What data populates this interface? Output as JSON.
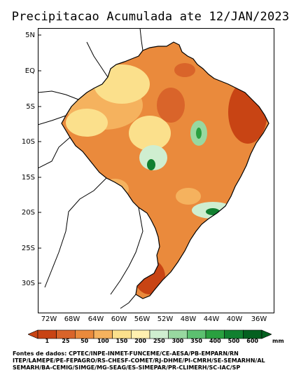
{
  "title": "Precipitacao Acumulada ate 12/JAN/2023",
  "latitude_labels": [
    "5N",
    "EQ",
    "5S",
    "10S",
    "15S",
    "20S",
    "25S",
    "30S"
  ],
  "longitude_labels": [
    "72W",
    "68W",
    "64W",
    "60W",
    "56W",
    "52W",
    "48W",
    "44W",
    "40W",
    "36W"
  ],
  "colorbar": {
    "ticks": [
      "1",
      "25",
      "50",
      "100",
      "150",
      "200",
      "250",
      "300",
      "350",
      "400",
      "500",
      "600"
    ],
    "unit": "mm",
    "colors": [
      "#c84414",
      "#d9642a",
      "#ea8a3c",
      "#f5b25e",
      "#fbe08c",
      "#fff0b0",
      "#cfeed0",
      "#98d8a0",
      "#5cc070",
      "#2aa040",
      "#118030",
      "#046020"
    ]
  },
  "sources": [
    "Fontes de dados: CPTEC/INPE-INMET-FUNCEME/CE-AESA/PB-EMPARN/RN",
    "ITEP/LAMEPE/PE-FEPAGRO/RS-CHESF-COMET/RJ-DHME/PI-CMRH/SE-SEMARHN/AL",
    "SEMARH/BA-CEMIG/SIMGE/MG-SEAG/ES-SIMEPAR/PR-CLIMERH/SC-IAC/SP"
  ]
}
